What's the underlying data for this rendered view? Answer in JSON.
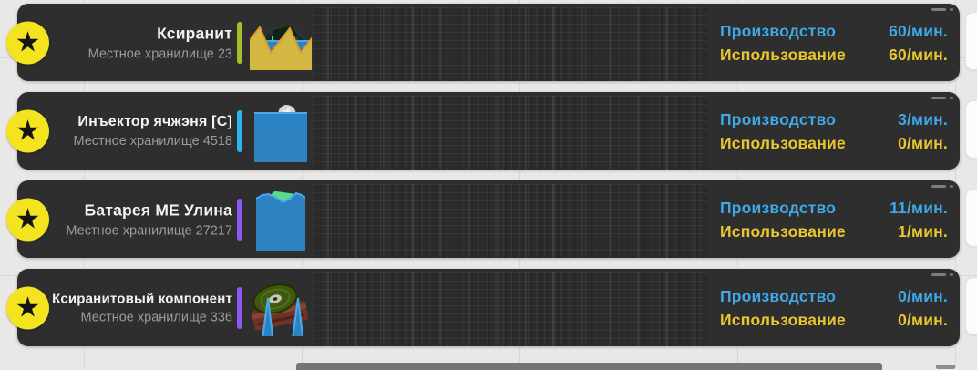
{
  "panel": {
    "production_label": "Производство",
    "usage_label": "Использование",
    "production_color": "#3fa9e8",
    "usage_color": "#eac62f",
    "star_icon": "★"
  },
  "rows": [
    {
      "name": "Ксиранит",
      "storage": "Местное хранилище 23",
      "icon": "xiranite-ore-icon",
      "accent_color": "#a9bc2a",
      "production": "60/мин.",
      "usage": "60/мин.",
      "chart": {
        "type": "area",
        "y_unit": "percent_from_top",
        "series": [
          {
            "name": "production",
            "fill": "#2d83c2",
            "edge": "#4aa8ec",
            "points": [
              [
                0,
                28
              ],
              [
                100,
                28
              ]
            ]
          },
          {
            "name": "usage",
            "fill": "#d2b843",
            "edge": "#df9d28",
            "points": [
              [
                0,
                27
              ],
              [
                11,
                13
              ],
              [
                23,
                41
              ],
              [
                44,
                14
              ],
              [
                56,
                41
              ],
              [
                78,
                12
              ],
              [
                90,
                41
              ],
              [
                100,
                23
              ]
            ]
          }
        ]
      }
    },
    {
      "name": "Инъектор ячжэня [C]",
      "storage": "Местное хранилище 4518",
      "icon": "yachzhen-injector-icon",
      "accent_color": "#2fb2f2",
      "production": "3/мин.",
      "usage": "0/мин.",
      "chart": {
        "type": "area",
        "y_unit": "percent_from_top",
        "series": [
          {
            "name": "production",
            "fill": "#2d83c2",
            "edge": "#4aa8ec",
            "points": [
              [
                0,
                14
              ],
              [
                100,
                14
              ]
            ]
          }
        ]
      }
    },
    {
      "name": "Батарея МЕ Улина",
      "storage": "Местное хранилище 27217",
      "icon": "me-ulin-battery-icon",
      "accent_color": "#8c57f2",
      "production": "11/мин.",
      "usage": "1/мин.",
      "chart": {
        "type": "area",
        "y_unit": "percent_from_top",
        "series": [
          {
            "name": "production",
            "fill": "#2d83c2",
            "edge": "#4aa8ec",
            "points": [
              [
                0,
                11
              ],
              [
                7,
                7
              ],
              [
                14,
                6
              ],
              [
                22,
                10
              ],
              [
                30,
                15
              ],
              [
                37,
                11
              ],
              [
                44,
                5
              ],
              [
                50,
                7
              ],
              [
                57,
                12
              ],
              [
                63,
                15
              ],
              [
                70,
                9
              ],
              [
                77,
                5
              ],
              [
                84,
                8
              ],
              [
                91,
                14
              ],
              [
                100,
                10
              ]
            ]
          },
          {
            "name": "usage",
            "fill": "#d2b843",
            "edge": "#df9d28",
            "points": [
              [
                0,
                89
              ],
              [
                8,
                86
              ],
              [
                16,
                91
              ],
              [
                24,
                94
              ],
              [
                32,
                90
              ],
              [
                40,
                86
              ],
              [
                48,
                91
              ],
              [
                56,
                94
              ],
              [
                62,
                90
              ],
              [
                70,
                86
              ],
              [
                78,
                90
              ],
              [
                86,
                93
              ],
              [
                93,
                88
              ],
              [
                100,
                89
              ]
            ]
          }
        ]
      }
    },
    {
      "name": "Ксиранитовый компонент",
      "storage": "Местное хранилище 336",
      "icon": "xiranite-component-icon",
      "accent_color": "#8c57f2",
      "production": "0/мин.",
      "usage": "0/мин.",
      "chart": {
        "type": "area",
        "y_unit": "percent_from_top",
        "series": [
          {
            "name": "production",
            "fill": "#2d83c2",
            "edge": "#4aa8ec",
            "points": [
              [
                0,
                102
              ],
              [
                12,
                102
              ],
              [
                23,
                20
              ],
              [
                33,
                102
              ],
              [
                45,
                102
              ],
              [
                56,
                20
              ],
              [
                66,
                102
              ],
              [
                100,
                102
              ]
            ]
          }
        ]
      }
    }
  ]
}
